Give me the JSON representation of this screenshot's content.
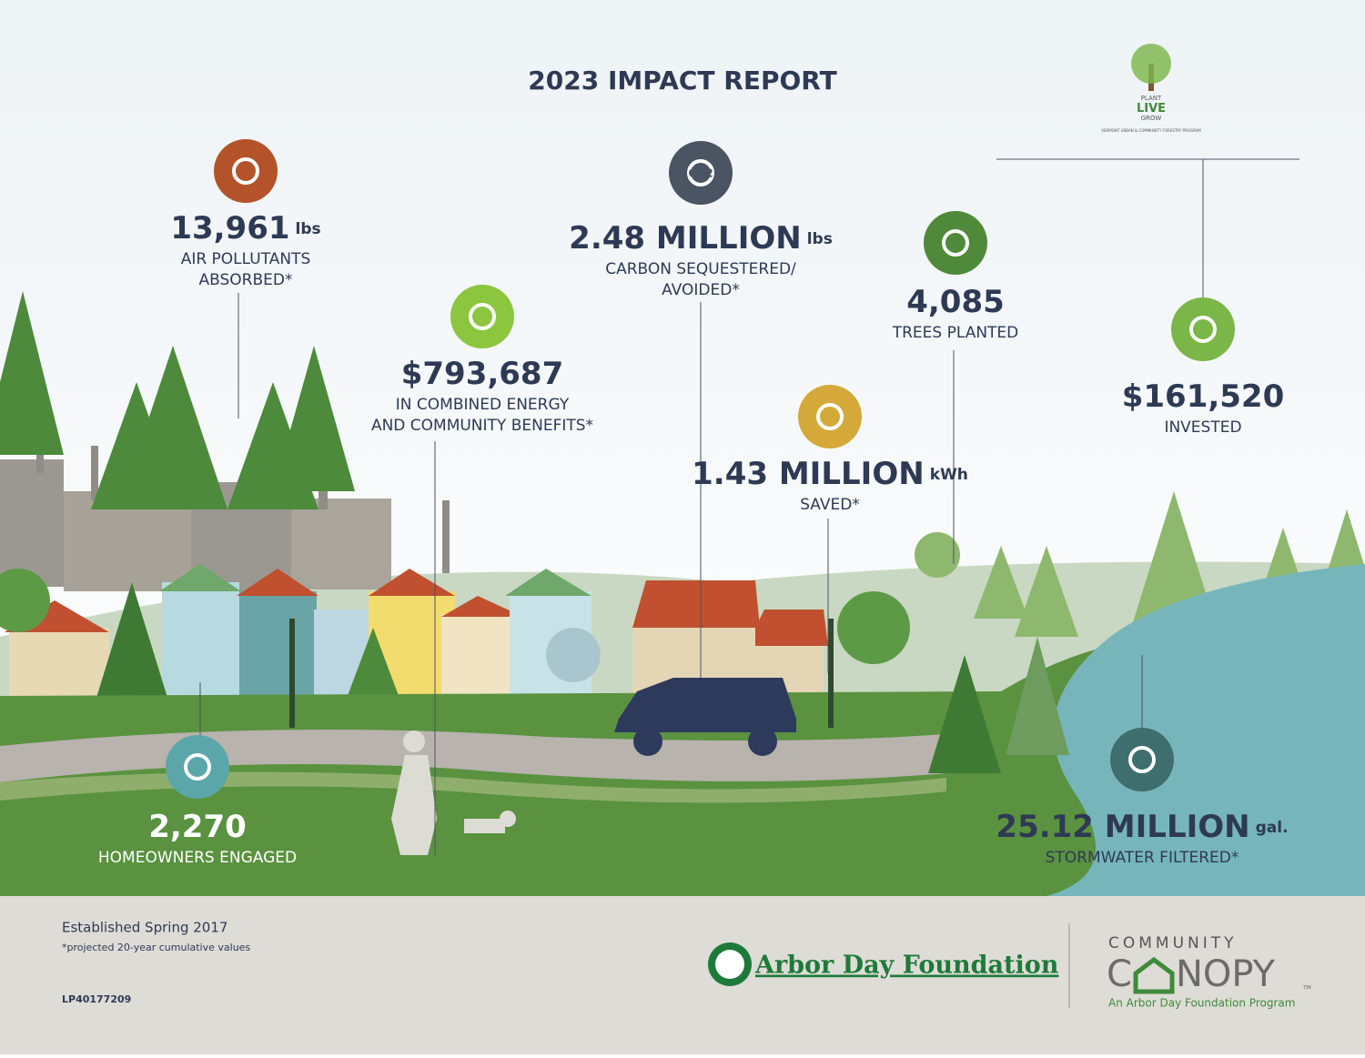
{
  "title": "2023 IMPACT REPORT",
  "logo": {
    "lines": [
      "PLANT",
      "LIVE",
      "GROW"
    ],
    "caption": "VERMONT URBAN & COMMUNITY FORESTRY PROGRAM"
  },
  "stats": [
    {
      "value": "13,961",
      "unit": "lbs",
      "label": [
        "AIR POLLUTANTS",
        "ABSORBED*"
      ]
    },
    {
      "value": "$793,687",
      "label": [
        "IN COMBINED ENERGY",
        "AND COMMUNITY BENEFITS*"
      ]
    },
    {
      "icon_text": "CO2",
      "value": "2.48 MILLION",
      "unit": "lbs",
      "label": [
        "CARBON SEQUESTERED/",
        "AVOIDED*"
      ]
    },
    {
      "value": "4,085",
      "label": [
        "TREES PLANTED"
      ]
    },
    {
      "value": "1.43 MILLION",
      "unit": "kWh",
      "label": [
        "SAVED*"
      ]
    },
    {
      "value": "$161,520",
      "label": [
        "INVESTED"
      ]
    },
    {
      "value": "2,270",
      "label": [
        "HOMEOWNERS ENGAGED"
      ]
    },
    {
      "value": "25.12 MILLION",
      "unit": "gal.",
      "label": [
        "STORMWATER FILTERED*"
      ]
    }
  ],
  "footer": {
    "established": "Established Spring 2017",
    "note": "*projected 20-year cumulative values",
    "code": "LP40177209",
    "arbor": "Arbor Day Foundation",
    "canopy_top": "COMMUNITY",
    "canopy_left": "C",
    "canopy_right": "NOPY",
    "tm": "TM",
    "canopy_sub": "An Arbor Day Foundation Program"
  }
}
